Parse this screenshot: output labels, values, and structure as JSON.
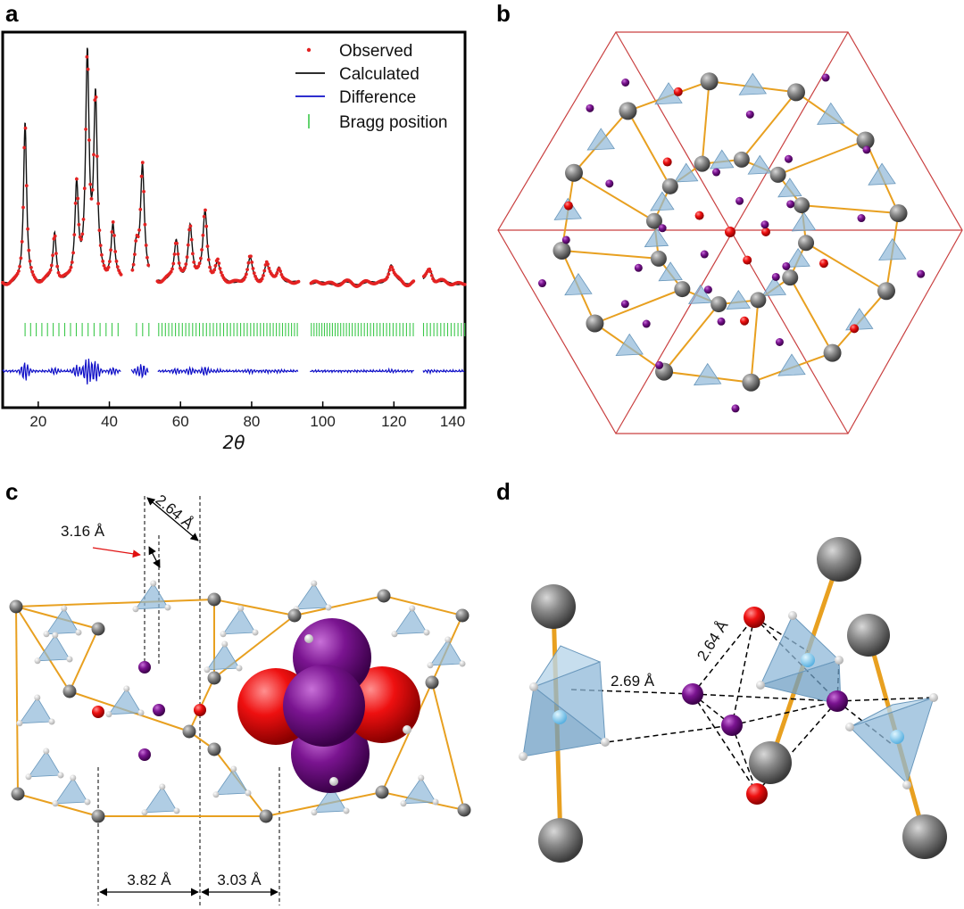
{
  "panels": {
    "a": "a",
    "b": "b",
    "c": "c",
    "d": "d"
  },
  "chart_data": {
    "type": "line",
    "xlabel": "2θ",
    "xlim": [
      10,
      140
    ],
    "x_ticks": [
      20,
      40,
      60,
      80,
      100,
      120,
      140
    ],
    "legend_position": "top-right",
    "series": [
      {
        "name": "Observed",
        "style": "red dots",
        "color": "#e32222"
      },
      {
        "name": "Calculated",
        "style": "black line",
        "color": "#111111"
      },
      {
        "name": "Difference",
        "style": "blue line",
        "color": "#1010c8"
      },
      {
        "name": "Bragg position",
        "style": "green ticks",
        "color": "#3cc84a"
      }
    ],
    "peaks": [
      {
        "x": 16.3,
        "y": 0.72
      },
      {
        "x": 24.6,
        "y": 0.22
      },
      {
        "x": 30.8,
        "y": 0.42
      },
      {
        "x": 33.8,
        "y": 1.0
      },
      {
        "x": 36.1,
        "y": 0.8
      },
      {
        "x": 41.0,
        "y": 0.25
      },
      {
        "x": 47.6,
        "y": 0.15
      },
      {
        "x": 49.3,
        "y": 0.51
      },
      {
        "x": 58.8,
        "y": 0.18
      },
      {
        "x": 62.7,
        "y": 0.25
      },
      {
        "x": 66.9,
        "y": 0.32
      },
      {
        "x": 70.4,
        "y": 0.08
      },
      {
        "x": 79.6,
        "y": 0.11
      },
      {
        "x": 84.2,
        "y": 0.08
      },
      {
        "x": 87.7,
        "y": 0.07
      },
      {
        "x": 119.2,
        "y": 0.08
      },
      {
        "x": 130.0,
        "y": 0.07
      }
    ],
    "gaps": [
      [
        43.4,
        46.2
      ],
      [
        51.2,
        53.5
      ],
      [
        93.2,
        96.4
      ],
      [
        125.8,
        128.2
      ]
    ]
  },
  "panel_c": {
    "dist_top_1": "3.16 Å",
    "dist_top_2": "2.64 Å",
    "dist_bottom_1": "3.82 Å",
    "dist_bottom_2": "3.03 Å"
  },
  "panel_d": {
    "dist_1": "2.69 Å",
    "dist_2": "2.64 Å"
  },
  "colors": {
    "oxygen": "#e01010",
    "iodine": "#7a1490",
    "carbon": "#808080",
    "hydrogen": "#ffffff",
    "tetrahedron": "#8fb8d8",
    "bond": "#e8a020",
    "cell": "#c94040"
  }
}
